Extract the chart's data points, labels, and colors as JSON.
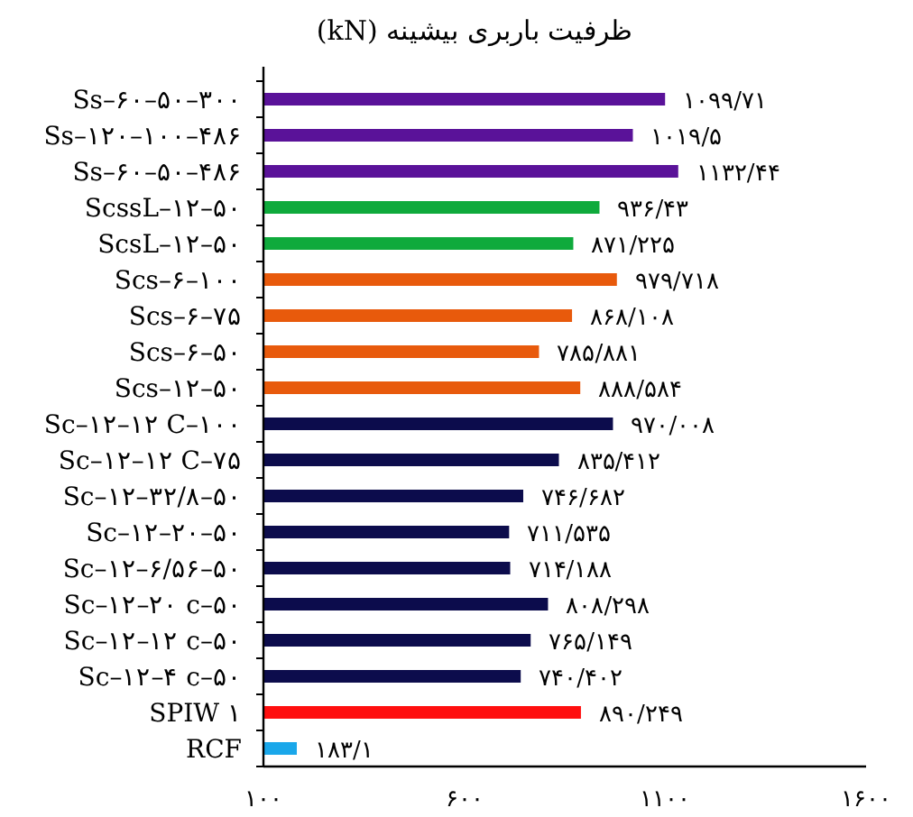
{
  "chart_data": {
    "type": "bar",
    "orientation": "horizontal",
    "title": "ظرفیت باربری بیشینه (kN)",
    "categories": [
      "Ss–۶۰–۵۰–۳۰۰",
      "Ss–۱۲۰–۱۰۰–۴۸۶",
      "Ss–۶۰–۵۰–۴۸۶",
      "ScssL–۱۲–۵۰",
      "ScsL–۱۲–۵۰",
      "Scs–۶–۱۰۰",
      "Scs–۶–۷۵",
      "Scs–۶–۵۰",
      "Scs–۱۲–۵۰",
      "Sc–۱۲–۱۲ C–۱۰۰",
      "Sc–۱۲–۱۲ C–۷۵",
      "Sc–۱۲–۳۲/۸–۵۰",
      "Sc–۱۲–۲۰–۵۰",
      "Sc–۱۲–۶/۵۶–۵۰",
      "Sc–۱۲–۲۰ c–۵۰",
      "Sc–۱۲–۱۲ c–۵۰",
      "Sc–۱۲–۴ c–۵۰",
      "SPIW ۱",
      "RCF"
    ],
    "values": [
      1099.71,
      1019.5,
      1132.44,
      936.43,
      871.225,
      979.718,
      868.108,
      785.881,
      888.584,
      970.008,
      835.412,
      746.682,
      711.535,
      714.188,
      808.298,
      765.149,
      740.402,
      890.249,
      183.1
    ],
    "value_labels": [
      "۱۰۹۹/۷۱",
      "۱۰۱۹/۵",
      "۱۱۳۲/۴۴",
      "۹۳۶/۴۳",
      "۸۷۱/۲۲۵",
      "۹۷۹/۷۱۸",
      "۸۶۸/۱۰۸",
      "۷۸۵/۸۸۱",
      "۸۸۸/۵۸۴",
      "۹۷۰/۰۰۸",
      "۸۳۵/۴۱۲",
      "۷۴۶/۶۸۲",
      "۷۱۱/۵۳۵",
      "۷۱۴/۱۸۸",
      "۸۰۸/۲۹۸",
      "۷۶۵/۱۴۹",
      "۷۴۰/۴۰۲",
      "۸۹۰/۲۴۹",
      "۱۸۳/۱"
    ],
    "colors": [
      "#5a1299",
      "#5a1299",
      "#5a1299",
      "#0faa3c",
      "#0faa3c",
      "#e85a0c",
      "#e85a0c",
      "#e85a0c",
      "#e85a0c",
      "#0c0c4c",
      "#0c0c4c",
      "#0c0c4c",
      "#0c0c4c",
      "#0c0c4c",
      "#0c0c4c",
      "#0c0c4c",
      "#0c0c4c",
      "#ff0f0f",
      "#1aa7ea"
    ],
    "xlim": [
      100,
      1600
    ],
    "xticks": [
      {
        "value": 100,
        "label": "۱۰۰"
      },
      {
        "value": 600,
        "label": "۶۰۰"
      },
      {
        "value": 1100,
        "label": "۱۱۰۰"
      },
      {
        "value": 1600,
        "label": "۱۶۰۰"
      }
    ]
  }
}
